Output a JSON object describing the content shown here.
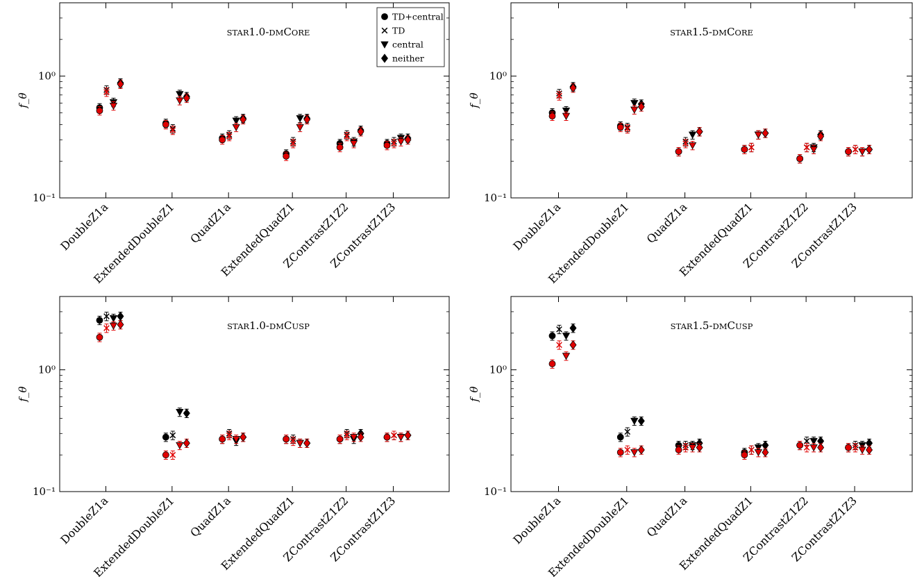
{
  "chart_data": [
    {
      "type": "scatter",
      "title": "star1.0-dmCore",
      "ylabel": "f_θ",
      "yscale": "log",
      "ylim": [
        0.1,
        4.0
      ],
      "yticks": [
        {
          "value": 0.1,
          "label": "10⁻¹"
        },
        {
          "value": 1.0,
          "label": "10⁰"
        }
      ],
      "categories": [
        "DoubleZ1a",
        "ExtendedDoubleZ1",
        "QuadZ1a",
        "ExtendedQuadZ1",
        "ZContrastZ1Z2",
        "ZContrastZ1Z3"
      ],
      "legend": {
        "placement": "top-right",
        "entries": [
          {
            "label": "TD+central",
            "marker": "circle"
          },
          {
            "label": "TD",
            "marker": "x"
          },
          {
            "label": "central",
            "marker": "triangle-down"
          },
          {
            "label": "neither",
            "marker": "diamond"
          }
        ]
      },
      "series": [
        {
          "marker": "circle",
          "color": "#000000",
          "values": [
            0.55,
            0.41,
            0.31,
            0.23,
            0.28,
            0.28
          ]
        },
        {
          "marker": "x",
          "color": "#000000",
          "values": [
            0.77,
            0.37,
            0.33,
            0.29,
            0.33,
            0.29
          ]
        },
        {
          "marker": "triangle-down",
          "color": "#000000",
          "values": [
            0.61,
            0.71,
            0.43,
            0.45,
            0.29,
            0.31
          ]
        },
        {
          "marker": "diamond",
          "color": "#000000",
          "values": [
            0.88,
            0.68,
            0.45,
            0.45,
            0.36,
            0.31
          ]
        },
        {
          "marker": "circle",
          "color": "#e00000",
          "values": [
            0.52,
            0.4,
            0.3,
            0.22,
            0.26,
            0.27
          ]
        },
        {
          "marker": "x",
          "color": "#e00000",
          "values": [
            0.74,
            0.36,
            0.32,
            0.28,
            0.32,
            0.28
          ]
        },
        {
          "marker": "triangle-down",
          "color": "#e00000",
          "values": [
            0.57,
            0.63,
            0.38,
            0.38,
            0.28,
            0.29
          ]
        },
        {
          "marker": "diamond",
          "color": "#e00000",
          "values": [
            0.86,
            0.66,
            0.44,
            0.44,
            0.35,
            0.3
          ]
        }
      ]
    },
    {
      "type": "scatter",
      "title": "star1.5-dmCore",
      "ylabel": "f_θ",
      "yscale": "log",
      "ylim": [
        0.1,
        4.0
      ],
      "yticks": [
        {
          "value": 0.1,
          "label": "10⁻¹"
        },
        {
          "value": 1.0,
          "label": "10⁰"
        }
      ],
      "categories": [
        "DoubleZ1a",
        "ExtendedDoubleZ1",
        "QuadZ1a",
        "ExtendedQuadZ1",
        "ZContrastZ1Z2",
        "ZContrastZ1Z3"
      ],
      "series": [
        {
          "marker": "circle",
          "color": "#000000",
          "values": [
            0.5,
            0.39,
            0.24,
            0.25,
            0.21,
            0.24
          ]
        },
        {
          "marker": "x",
          "color": "#000000",
          "values": [
            0.72,
            0.38,
            0.29,
            0.26,
            0.26,
            0.25
          ]
        },
        {
          "marker": "triangle-down",
          "color": "#000000",
          "values": [
            0.52,
            0.6,
            0.33,
            0.33,
            0.26,
            0.24
          ]
        },
        {
          "marker": "diamond",
          "color": "#000000",
          "values": [
            0.82,
            0.59,
            0.35,
            0.34,
            0.33,
            0.25
          ]
        },
        {
          "marker": "circle",
          "color": "#e00000",
          "values": [
            0.47,
            0.38,
            0.24,
            0.25,
            0.21,
            0.24
          ]
        },
        {
          "marker": "x",
          "color": "#e00000",
          "values": [
            0.69,
            0.37,
            0.28,
            0.26,
            0.26,
            0.25
          ]
        },
        {
          "marker": "triangle-down",
          "color": "#e00000",
          "values": [
            0.47,
            0.53,
            0.27,
            0.33,
            0.25,
            0.24
          ]
        },
        {
          "marker": "diamond",
          "color": "#e00000",
          "values": [
            0.8,
            0.56,
            0.35,
            0.34,
            0.32,
            0.25
          ]
        }
      ]
    },
    {
      "type": "scatter",
      "title": "star1.0-dmCusp",
      "ylabel": "f_θ",
      "yscale": "log",
      "ylim": [
        0.1,
        4.0
      ],
      "yticks": [
        {
          "value": 0.1,
          "label": "10⁻¹"
        },
        {
          "value": 1.0,
          "label": "10⁰"
        }
      ],
      "categories": [
        "DoubleZ1a",
        "ExtendedDoubleZ1",
        "QuadZ1a",
        "ExtendedQuadZ1",
        "ZContrastZ1Z2",
        "ZContrastZ1Z3"
      ],
      "series": [
        {
          "marker": "circle",
          "color": "#000000",
          "values": [
            2.55,
            0.28,
            0.27,
            0.27,
            0.27,
            0.28
          ]
        },
        {
          "marker": "x",
          "color": "#000000",
          "values": [
            2.75,
            0.29,
            0.3,
            0.27,
            0.3,
            0.29
          ]
        },
        {
          "marker": "triangle-down",
          "color": "#000000",
          "values": [
            2.65,
            0.45,
            0.26,
            0.25,
            0.27,
            0.28
          ]
        },
        {
          "marker": "diamond",
          "color": "#000000",
          "values": [
            2.75,
            0.44,
            0.28,
            0.25,
            0.3,
            0.29
          ]
        },
        {
          "marker": "circle",
          "color": "#e00000",
          "values": [
            1.85,
            0.2,
            0.27,
            0.27,
            0.27,
            0.28
          ]
        },
        {
          "marker": "x",
          "color": "#e00000",
          "values": [
            2.2,
            0.2,
            0.29,
            0.26,
            0.29,
            0.29
          ]
        },
        {
          "marker": "triangle-down",
          "color": "#e00000",
          "values": [
            2.3,
            0.24,
            0.27,
            0.25,
            0.28,
            0.28
          ]
        },
        {
          "marker": "diamond",
          "color": "#e00000",
          "values": [
            2.35,
            0.25,
            0.28,
            0.25,
            0.28,
            0.29
          ]
        }
      ]
    },
    {
      "type": "scatter",
      "title": "star1.5-dmCusp",
      "ylabel": "f_θ",
      "yscale": "log",
      "ylim": [
        0.1,
        4.0
      ],
      "yticks": [
        {
          "value": 0.1,
          "label": "10⁻¹"
        },
        {
          "value": 1.0,
          "label": "10⁰"
        }
      ],
      "categories": [
        "DoubleZ1a",
        "ExtendedDoubleZ1",
        "QuadZ1a",
        "ExtendedQuadZ1",
        "ZContrastZ1Z2",
        "ZContrastZ1Z3"
      ],
      "series": [
        {
          "marker": "circle",
          "color": "#000000",
          "values": [
            1.9,
            0.28,
            0.24,
            0.21,
            0.24,
            0.23
          ]
        },
        {
          "marker": "x",
          "color": "#000000",
          "values": [
            2.15,
            0.31,
            0.24,
            0.22,
            0.26,
            0.24
          ]
        },
        {
          "marker": "triangle-down",
          "color": "#000000",
          "values": [
            1.9,
            0.38,
            0.24,
            0.23,
            0.26,
            0.24
          ]
        },
        {
          "marker": "diamond",
          "color": "#000000",
          "values": [
            2.2,
            0.38,
            0.25,
            0.24,
            0.26,
            0.25
          ]
        },
        {
          "marker": "circle",
          "color": "#e00000",
          "values": [
            1.12,
            0.21,
            0.22,
            0.2,
            0.24,
            0.23
          ]
        },
        {
          "marker": "x",
          "color": "#e00000",
          "values": [
            1.6,
            0.22,
            0.23,
            0.22,
            0.23,
            0.23
          ]
        },
        {
          "marker": "triangle-down",
          "color": "#e00000",
          "values": [
            1.3,
            0.21,
            0.23,
            0.21,
            0.23,
            0.22
          ]
        },
        {
          "marker": "diamond",
          "color": "#e00000",
          "values": [
            1.6,
            0.22,
            0.23,
            0.21,
            0.23,
            0.22
          ]
        }
      ]
    }
  ]
}
